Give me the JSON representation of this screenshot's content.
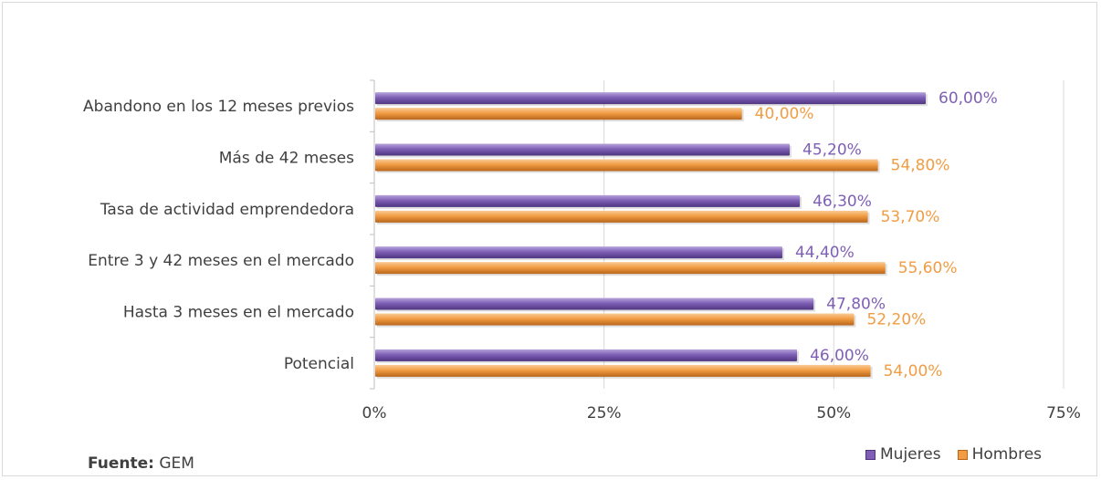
{
  "source": {
    "label": "Fuente:",
    "value": "GEM"
  },
  "colors": {
    "mujeres": "#7e5fb5",
    "hombres": "#f29c43",
    "mujeres_label": "#7e5fb5",
    "hombres_label": "#f29c43",
    "grid": "#d9d9d9",
    "text": "#404040"
  },
  "chart_data": {
    "type": "bar",
    "orientation": "horizontal",
    "categories": [
      "Abandono en los 12 meses previos",
      "Más de 42 meses ",
      "Tasa de actividad emprendedora",
      "Entre 3 y 42 meses en el mercado",
      "Hasta 3 meses en el mercado",
      "Potencial"
    ],
    "series": [
      {
        "name": "Mujeres",
        "values": [
          60.0,
          45.2,
          46.3,
          44.4,
          47.8,
          46.0
        ],
        "labels": [
          "60,00%",
          "45,20%",
          "46,30%",
          "44,40%",
          "47,80%",
          "46,00%"
        ]
      },
      {
        "name": "Hombres",
        "values": [
          40.0,
          54.8,
          53.7,
          55.6,
          52.2,
          54.0
        ],
        "labels": [
          "40,00%",
          "54,80%",
          "53,70%",
          "55,60%",
          "52,20%",
          "54,00%"
        ]
      }
    ],
    "xlim": [
      0,
      75
    ],
    "xticks": [
      0,
      25,
      50,
      75
    ],
    "xtick_labels": [
      "0%",
      "25%",
      "50%",
      "75%"
    ],
    "grid": true,
    "legend_position": "bottom-right"
  }
}
